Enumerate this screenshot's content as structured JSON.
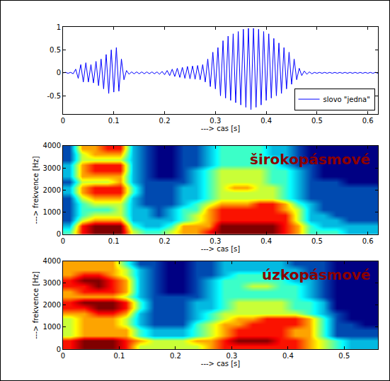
{
  "chart_data": [
    {
      "type": "line",
      "x_label": "---> cas [s]",
      "xlim": [
        0,
        0.62
      ],
      "xticks": [
        0,
        0.1,
        0.2,
        0.3,
        0.4,
        0.5,
        0.6
      ],
      "ylim": [
        -0.9,
        1
      ],
      "yticks": [
        -0.5,
        0,
        0.5,
        1
      ],
      "grid": false,
      "legend": "lower right",
      "series": [
        {
          "name": "slovo \"jedna\"",
          "color": "#0000ff",
          "x": [
            0,
            0.005,
            0.01,
            0.015,
            0.02,
            0.025,
            0.03,
            0.035,
            0.04,
            0.045,
            0.05,
            0.055,
            0.06,
            0.065,
            0.07,
            0.075,
            0.08,
            0.085,
            0.09,
            0.095,
            0.1,
            0.105,
            0.11,
            0.115,
            0.12,
            0.125,
            0.13,
            0.135,
            0.14,
            0.145,
            0.15,
            0.155,
            0.16,
            0.165,
            0.17,
            0.175,
            0.18,
            0.185,
            0.19,
            0.195,
            0.2,
            0.205,
            0.21,
            0.215,
            0.22,
            0.225,
            0.23,
            0.235,
            0.24,
            0.245,
            0.25,
            0.255,
            0.26,
            0.265,
            0.27,
            0.275,
            0.28,
            0.285,
            0.29,
            0.295,
            0.3,
            0.305,
            0.31,
            0.315,
            0.32,
            0.325,
            0.33,
            0.335,
            0.34,
            0.345,
            0.35,
            0.355,
            0.36,
            0.365,
            0.37,
            0.375,
            0.38,
            0.385,
            0.39,
            0.395,
            0.4,
            0.405,
            0.41,
            0.415,
            0.42,
            0.425,
            0.43,
            0.435,
            0.44,
            0.445,
            0.45,
            0.455,
            0.46,
            0.465,
            0.47,
            0.475,
            0.48,
            0.485,
            0.49,
            0.495,
            0.5,
            0.505,
            0.51,
            0.515,
            0.52,
            0.525,
            0.53,
            0.535,
            0.54,
            0.545,
            0.55,
            0.555,
            0.56,
            0.565,
            0.57,
            0.575,
            0.58,
            0.585,
            0.59,
            0.595,
            0.6,
            0.605,
            0.61,
            0.615,
            0.62
          ],
          "values": [
            0,
            0.01,
            -0.01,
            0.01,
            -0.02,
            0.08,
            -0.12,
            0.18,
            -0.2,
            0.22,
            -0.2,
            0.18,
            -0.22,
            0.25,
            -0.28,
            0.3,
            -0.35,
            0.4,
            -0.45,
            0.5,
            -0.42,
            0.55,
            -0.4,
            0.3,
            -0.15,
            0.05,
            -0.03,
            0.02,
            -0.02,
            0.02,
            -0.02,
            0.02,
            -0.02,
            0.02,
            -0.02,
            0.02,
            -0.02,
            0.02,
            -0.03,
            0.03,
            -0.04,
            0.05,
            -0.06,
            0.08,
            -0.08,
            0.1,
            -0.1,
            0.12,
            -0.12,
            0.14,
            -0.13,
            0.15,
            -0.14,
            0.16,
            -0.15,
            0.18,
            -0.2,
            0.3,
            -0.3,
            0.45,
            -0.35,
            0.55,
            -0.5,
            0.7,
            -0.55,
            0.8,
            -0.6,
            0.85,
            -0.65,
            0.9,
            -0.7,
            0.95,
            -0.75,
            0.97,
            -0.8,
            0.97,
            -0.75,
            0.95,
            -0.7,
            0.9,
            -0.6,
            0.85,
            -0.55,
            0.75,
            -0.5,
            0.65,
            -0.45,
            0.55,
            -0.35,
            0.45,
            -0.25,
            0.3,
            -0.15,
            0.1,
            -0.06,
            0.04,
            -0.03,
            0.02,
            -0.02,
            0.01,
            -0.01,
            0.01,
            -0.01,
            0.01,
            -0.01,
            0.01,
            -0.01,
            0.01,
            -0.01,
            0.01,
            -0.01,
            0.01,
            -0.01,
            0.01,
            -0.01,
            0.01,
            -0.01,
            0.01,
            -0.01,
            0.01,
            -0.01,
            0.01,
            -0.01,
            0.01,
            -0.01
          ]
        }
      ]
    },
    {
      "type": "heatmap",
      "annotations": [
        "širokopásmové"
      ],
      "x_label": "---> cas [s]",
      "y_label": "---> frekvence [Hz]",
      "xlim": [
        0,
        0.62
      ],
      "xticks": [
        0,
        0.1,
        0.2,
        0.3,
        0.4,
        0.5,
        0.6
      ],
      "ylim": [
        0,
        4000
      ],
      "yticks": [
        0,
        1000,
        2000,
        3000,
        4000
      ],
      "grid": false,
      "x": [
        0.0125,
        0.0375,
        0.0625,
        0.0875,
        0.1125,
        0.1375,
        0.1625,
        0.1875,
        0.2125,
        0.2375,
        0.2625,
        0.2875,
        0.3125,
        0.3375,
        0.3625,
        0.3875,
        0.4125,
        0.4375,
        0.4625,
        0.4875,
        0.5125,
        0.5375,
        0.5625,
        0.5875,
        0.6125
      ],
      "y": [
        125,
        375,
        625,
        875,
        1125,
        1375,
        1625,
        1875,
        2125,
        2375,
        2625,
        2875,
        3125,
        3375,
        3625,
        3875
      ],
      "cells": [
        [
          6,
          9,
          10,
          10,
          10,
          7,
          6,
          6,
          7,
          8,
          8,
          9,
          10,
          10,
          10,
          10,
          10,
          9,
          8,
          6,
          6,
          6,
          5,
          5,
          5
        ],
        [
          5,
          9,
          10,
          10,
          10,
          6,
          5,
          5,
          6,
          8,
          8,
          8,
          10,
          10,
          10,
          10,
          10,
          9,
          8,
          6,
          5,
          5,
          5,
          5,
          5
        ],
        [
          4,
          7,
          8,
          8,
          8,
          5,
          5,
          5,
          5,
          6,
          7,
          8,
          9,
          9,
          9,
          9,
          9,
          9,
          7,
          5,
          5,
          5,
          4,
          4,
          4
        ],
        [
          4,
          6,
          7,
          7,
          7,
          5,
          5,
          4,
          5,
          6,
          7,
          8,
          9,
          9,
          9,
          9,
          9,
          9,
          7,
          5,
          5,
          4,
          4,
          4,
          4
        ],
        [
          4,
          6,
          6,
          6,
          7,
          5,
          5,
          4,
          5,
          6,
          6,
          8,
          9,
          9,
          9,
          9,
          9,
          8,
          7,
          5,
          4,
          4,
          4,
          4,
          4
        ],
        [
          4,
          6,
          7,
          7,
          7,
          5,
          4,
          4,
          4,
          5,
          6,
          7,
          8,
          8,
          8,
          9,
          9,
          8,
          6,
          5,
          4,
          4,
          4,
          4,
          4
        ],
        [
          4,
          7,
          8,
          8,
          8,
          5,
          4,
          4,
          4,
          5,
          5,
          6,
          7,
          7,
          7,
          7,
          7,
          6,
          5,
          4,
          4,
          4,
          4,
          4,
          4
        ],
        [
          5,
          8,
          9,
          9,
          9,
          6,
          4,
          4,
          4,
          5,
          5,
          6,
          7,
          7,
          7,
          7,
          7,
          6,
          5,
          4,
          4,
          4,
          4,
          4,
          4
        ],
        [
          5,
          8,
          9,
          9,
          9,
          6,
          4,
          4,
          4,
          5,
          5,
          6,
          7,
          8,
          8,
          7,
          7,
          6,
          5,
          4,
          4,
          4,
          4,
          4,
          4
        ],
        [
          4,
          7,
          7,
          7,
          8,
          5,
          4,
          4,
          4,
          4,
          5,
          6,
          7,
          7,
          7,
          7,
          6,
          6,
          5,
          4,
          4,
          4,
          3,
          3,
          3
        ],
        [
          5,
          8,
          8,
          8,
          8,
          5,
          4,
          3,
          3,
          4,
          5,
          6,
          7,
          7,
          7,
          7,
          6,
          6,
          5,
          4,
          3,
          3,
          3,
          3,
          3
        ],
        [
          5,
          8,
          9,
          9,
          9,
          5,
          4,
          3,
          3,
          4,
          5,
          6,
          7,
          7,
          7,
          7,
          6,
          6,
          5,
          4,
          3,
          3,
          3,
          3,
          3
        ],
        [
          5,
          8,
          9,
          9,
          9,
          5,
          4,
          3,
          3,
          4,
          4,
          5,
          6,
          6,
          6,
          6,
          6,
          5,
          4,
          4,
          3,
          3,
          3,
          3,
          3
        ],
        [
          4,
          7,
          7,
          7,
          7,
          5,
          4,
          3,
          3,
          4,
          4,
          5,
          6,
          6,
          6,
          6,
          6,
          5,
          4,
          3,
          3,
          3,
          3,
          3,
          3
        ],
        [
          4,
          7,
          8,
          8,
          8,
          5,
          4,
          3,
          3,
          4,
          4,
          5,
          6,
          6,
          6,
          6,
          5,
          5,
          4,
          3,
          3,
          3,
          3,
          3,
          3
        ],
        [
          4,
          8,
          8,
          9,
          9,
          5,
          4,
          3,
          3,
          4,
          4,
          5,
          6,
          6,
          6,
          6,
          5,
          5,
          4,
          3,
          3,
          3,
          3,
          3,
          3
        ]
      ]
    },
    {
      "type": "heatmap",
      "annotations": [
        "úzkopásmové"
      ],
      "x_label": "---> cas [s]",
      "y_label": "---> frekvence [Hz]",
      "xlim": [
        0,
        0.56
      ],
      "xticks": [
        0,
        0.1,
        0.2,
        0.3,
        0.4,
        0.5
      ],
      "ylim": [
        0,
        4000
      ],
      "yticks": [
        0,
        1000,
        2000,
        3000,
        4000
      ],
      "grid": false,
      "x": [
        0.0125,
        0.0375,
        0.0625,
        0.0875,
        0.1125,
        0.1375,
        0.1625,
        0.1875,
        0.2125,
        0.2375,
        0.2625,
        0.2875,
        0.3125,
        0.3375,
        0.3625,
        0.3875,
        0.4125,
        0.4375,
        0.4625,
        0.4875,
        0.5125,
        0.5375,
        0.5625
      ],
      "y": [
        125,
        375,
        625,
        875,
        1125,
        1375,
        1625,
        1875,
        2125,
        2375,
        2625,
        2875,
        3125,
        3375,
        3625,
        3875
      ],
      "cells": [
        [
          8,
          9,
          9,
          9,
          8,
          6,
          6,
          6,
          6,
          6,
          7,
          8,
          8,
          8,
          8,
          8,
          8,
          7,
          6,
          5,
          4,
          4,
          4
        ],
        [
          8,
          9,
          9,
          9,
          8,
          7,
          6,
          6,
          6,
          7,
          7,
          8,
          9,
          9,
          9,
          8,
          8,
          7,
          6,
          5,
          4,
          4,
          4
        ],
        [
          6,
          7,
          7,
          7,
          7,
          5,
          4,
          4,
          4,
          5,
          6,
          7,
          8,
          8,
          8,
          8,
          7,
          7,
          5,
          3,
          3,
          3,
          3
        ],
        [
          6,
          7,
          7,
          7,
          7,
          5,
          4,
          4,
          4,
          5,
          6,
          7,
          8,
          8,
          8,
          8,
          7,
          7,
          5,
          3,
          3,
          3,
          3
        ],
        [
          6,
          7,
          7,
          7,
          6,
          4,
          3,
          3,
          3,
          5,
          6,
          7,
          7,
          8,
          8,
          8,
          8,
          7,
          5,
          3,
          3,
          2,
          2
        ],
        [
          6,
          7,
          7,
          7,
          6,
          4,
          3,
          3,
          3,
          4,
          5,
          6,
          7,
          7,
          8,
          8,
          8,
          7,
          5,
          3,
          2,
          2,
          2
        ],
        [
          7,
          7,
          8,
          8,
          7,
          4,
          3,
          3,
          3,
          4,
          5,
          6,
          6,
          6,
          6,
          6,
          6,
          5,
          4,
          3,
          2,
          2,
          2
        ],
        [
          8,
          8,
          9,
          9,
          8,
          5,
          3,
          3,
          3,
          4,
          4,
          5,
          6,
          6,
          6,
          6,
          5,
          5,
          4,
          2,
          2,
          2,
          2
        ],
        [
          8,
          9,
          9,
          9,
          8,
          5,
          3,
          3,
          3,
          4,
          4,
          5,
          6,
          6,
          6,
          6,
          5,
          5,
          4,
          2,
          2,
          2,
          2
        ],
        [
          7,
          7,
          7,
          7,
          6,
          4,
          3,
          3,
          3,
          3,
          4,
          5,
          5,
          5,
          5,
          5,
          5,
          4,
          3,
          2,
          2,
          2,
          2
        ],
        [
          7,
          8,
          8,
          8,
          7,
          4,
          3,
          2,
          2,
          3,
          4,
          5,
          5,
          5,
          5,
          5,
          5,
          4,
          3,
          2,
          2,
          2,
          2
        ],
        [
          8,
          8,
          9,
          8,
          7,
          4,
          3,
          2,
          2,
          3,
          4,
          5,
          5,
          6,
          6,
          5,
          5,
          4,
          3,
          2,
          2,
          2,
          2
        ],
        [
          8,
          9,
          9,
          8,
          7,
          4,
          3,
          2,
          2,
          3,
          4,
          5,
          5,
          5,
          5,
          5,
          4,
          4,
          3,
          2,
          2,
          2,
          2
        ],
        [
          7,
          8,
          8,
          7,
          6,
          4,
          3,
          2,
          2,
          3,
          3,
          4,
          5,
          5,
          5,
          4,
          4,
          3,
          3,
          2,
          2,
          2,
          2
        ],
        [
          7,
          7,
          7,
          7,
          6,
          4,
          3,
          2,
          2,
          3,
          3,
          4,
          4,
          4,
          4,
          4,
          4,
          3,
          3,
          2,
          2,
          2,
          2
        ],
        [
          7,
          7,
          7,
          7,
          5,
          3,
          3,
          2,
          2,
          3,
          3,
          4,
          4,
          4,
          4,
          4,
          3,
          3,
          3,
          2,
          2,
          2,
          2
        ]
      ]
    }
  ]
}
